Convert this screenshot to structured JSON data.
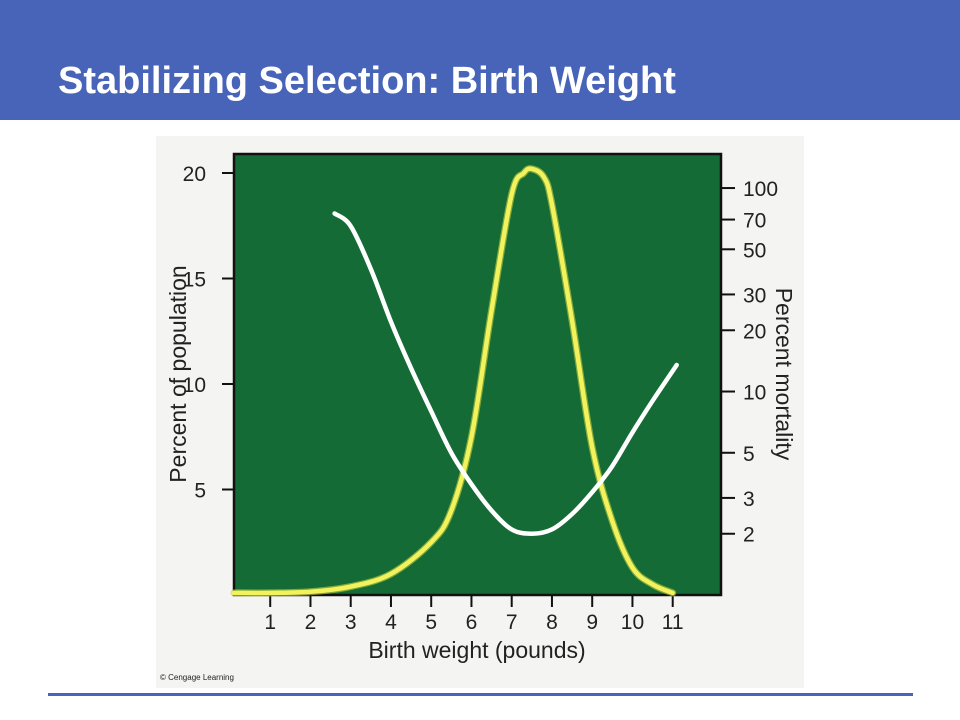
{
  "slide": {
    "title": "Stabilizing Selection: Birth Weight",
    "credit": "© Cengage Learning",
    "header_color": "#4864b8"
  },
  "chart_data": {
    "type": "line",
    "xlabel": "Birth weight (pounds)",
    "ylabel_left": "Percent of population",
    "ylabel_right": "Percent mortality",
    "x_ticks": [
      1,
      2,
      3,
      4,
      5,
      6,
      7,
      8,
      9,
      10,
      11
    ],
    "xlim": [
      0.1,
      12.2
    ],
    "y_left_ticks": [
      5,
      10,
      15,
      20
    ],
    "y_left_lim": [
      0,
      20.9
    ],
    "y_right_ticks": [
      2,
      3,
      5,
      10,
      20,
      30,
      50,
      70,
      100
    ],
    "y_right_scale": "log",
    "y_right_lim": [
      1.0,
      147
    ],
    "plot_background": "#156b35",
    "series": [
      {
        "axis": "left",
        "color": "#f2f25c",
        "x": [
          0.1,
          1,
          2,
          3,
          4,
          5,
          5.5,
          6,
          6.5,
          7,
          7.3,
          7.5,
          7.8,
          8,
          8.5,
          9,
          9.5,
          10,
          10.5,
          11
        ],
        "y": [
          0.1,
          0.1,
          0.15,
          0.4,
          1.0,
          2.5,
          4.0,
          7.5,
          13.5,
          19.0,
          20.0,
          20.2,
          19.8,
          18.5,
          13.0,
          7.0,
          3.5,
          1.3,
          0.5,
          0.1
        ]
      },
      {
        "axis": "right",
        "color": "#ffffff",
        "x": [
          2.6,
          3,
          3.5,
          4,
          4.5,
          5,
          5.5,
          6,
          6.5,
          7,
          7.5,
          8,
          8.5,
          9,
          9.5,
          10,
          10.5,
          11.1
        ],
        "y": [
          75,
          65,
          40,
          22,
          13,
          8,
          5,
          3.5,
          2.6,
          2.1,
          2.0,
          2.1,
          2.5,
          3.2,
          4.3,
          6.3,
          9.0,
          13.5
        ]
      }
    ]
  }
}
